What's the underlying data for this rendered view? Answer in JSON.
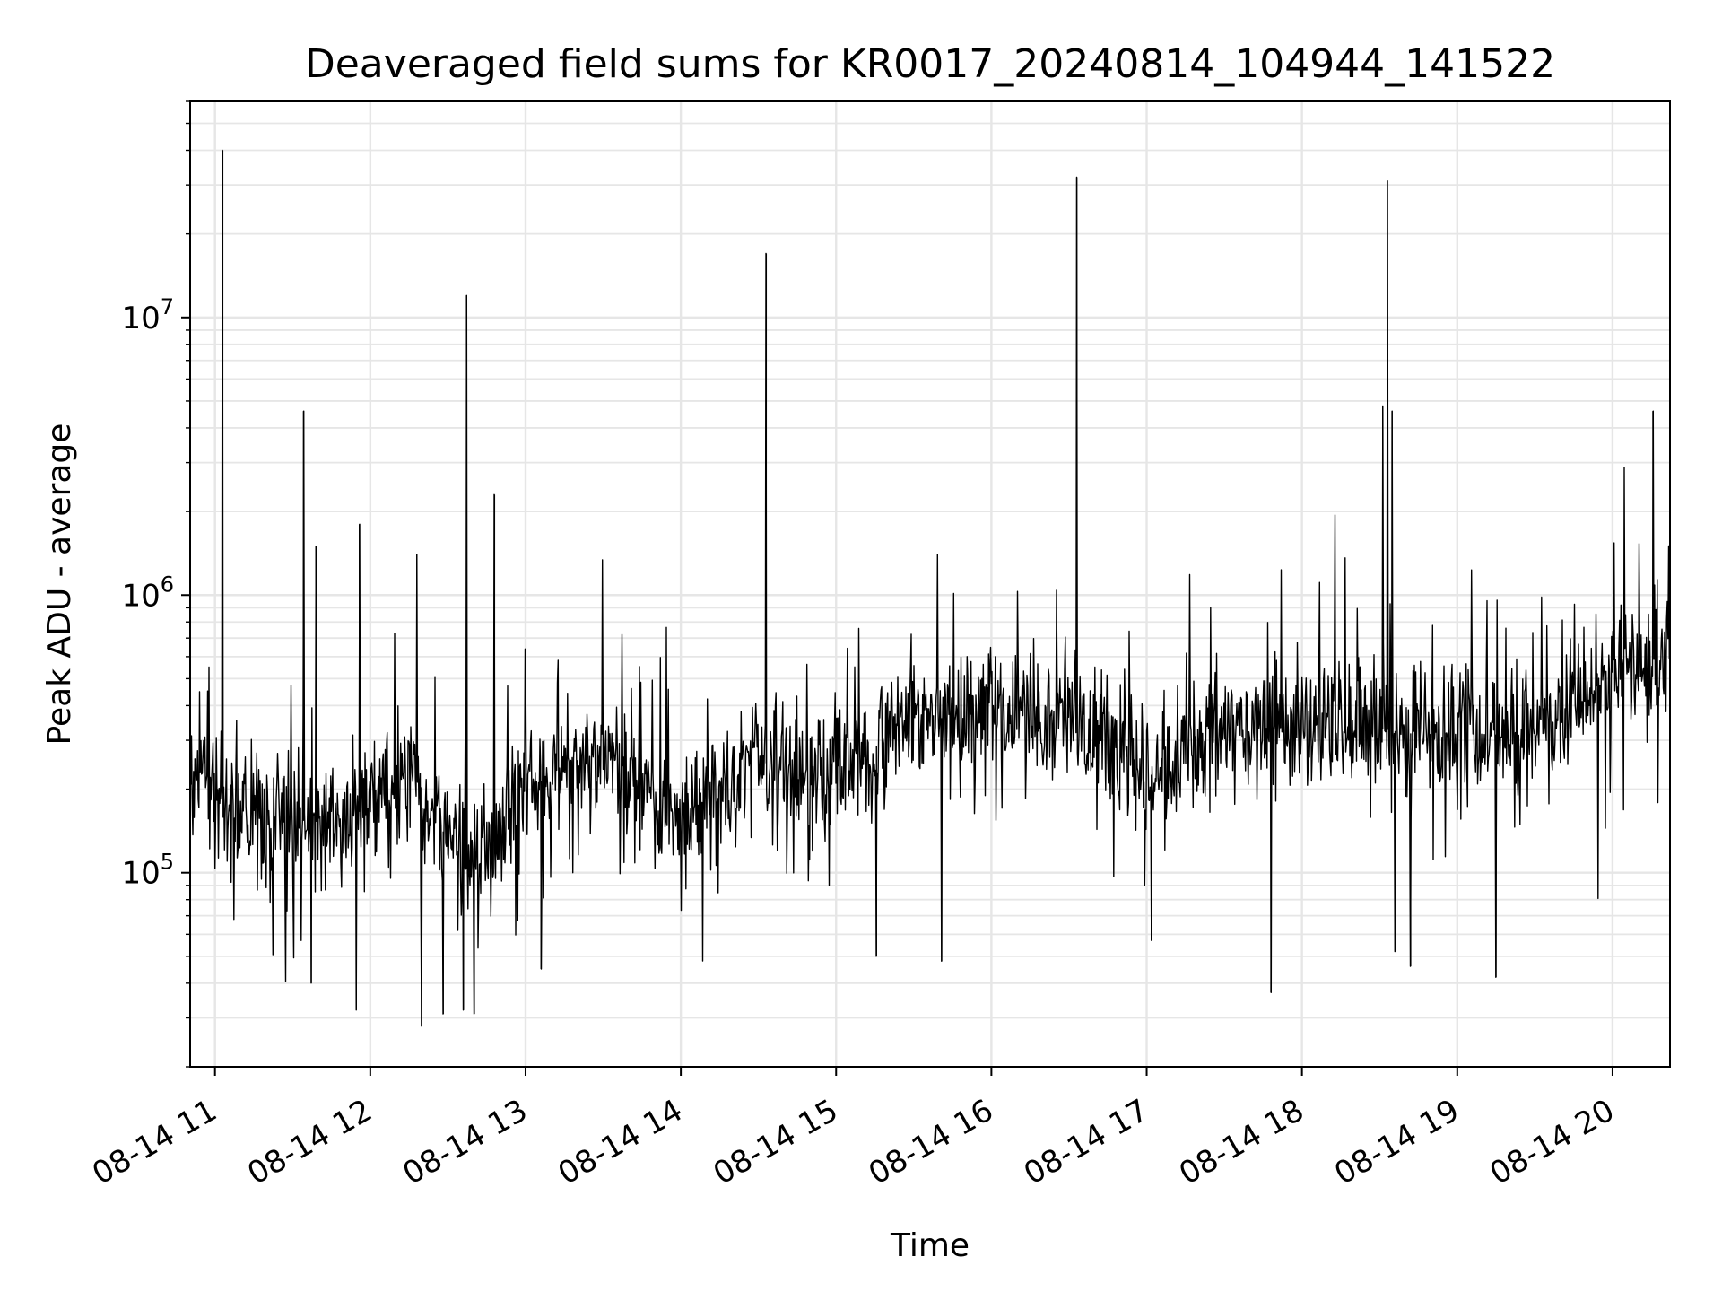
{
  "chart_data": {
    "type": "line",
    "title": "Deaveraged field sums for KR0017_20240814_104944_141522",
    "xlabel": "Time",
    "ylabel": "Peak ADU - average",
    "yscale": "log",
    "ylim": [
      20000,
      60000000
    ],
    "xlim_hours": [
      10.84,
      20.37
    ],
    "grid": true,
    "line_color": "#000000",
    "x_ticks": [
      {
        "value": 11,
        "label": "08-14 11"
      },
      {
        "value": 12,
        "label": "08-14 12"
      },
      {
        "value": 13,
        "label": "08-14 13"
      },
      {
        "value": 14,
        "label": "08-14 14"
      },
      {
        "value": 15,
        "label": "08-14 15"
      },
      {
        "value": 16,
        "label": "08-14 16"
      },
      {
        "value": 17,
        "label": "08-14 17"
      },
      {
        "value": 18,
        "label": "08-14 18"
      },
      {
        "value": 19,
        "label": "08-14 19"
      },
      {
        "value": 20,
        "label": "08-14 20"
      }
    ],
    "y_ticks": [
      {
        "value": 100000,
        "base": "10",
        "exp": "5"
      },
      {
        "value": 1000000,
        "base": "10",
        "exp": "6"
      },
      {
        "value": 10000000,
        "base": "10",
        "exp": "7"
      }
    ],
    "baseline_trend": [
      {
        "t": 10.84,
        "v": 250000
      },
      {
        "t": 11.2,
        "v": 160000
      },
      {
        "t": 11.8,
        "v": 150000
      },
      {
        "t": 12.3,
        "v": 220000
      },
      {
        "t": 12.6,
        "v": 100000
      },
      {
        "t": 13.0,
        "v": 200000
      },
      {
        "t": 13.5,
        "v": 280000
      },
      {
        "t": 14.0,
        "v": 150000
      },
      {
        "t": 14.5,
        "v": 250000
      },
      {
        "t": 15.0,
        "v": 230000
      },
      {
        "t": 15.5,
        "v": 350000
      },
      {
        "t": 16.0,
        "v": 380000
      },
      {
        "t": 16.5,
        "v": 380000
      },
      {
        "t": 17.0,
        "v": 220000
      },
      {
        "t": 17.5,
        "v": 330000
      },
      {
        "t": 18.0,
        "v": 330000
      },
      {
        "t": 18.5,
        "v": 330000
      },
      {
        "t": 19.0,
        "v": 300000
      },
      {
        "t": 19.5,
        "v": 330000
      },
      {
        "t": 19.9,
        "v": 450000
      },
      {
        "t": 20.37,
        "v": 680000
      }
    ],
    "spikes": [
      {
        "t": 11.05,
        "v": 40000000
      },
      {
        "t": 11.57,
        "v": 4600000
      },
      {
        "t": 11.65,
        "v": 1500000
      },
      {
        "t": 11.93,
        "v": 1800000
      },
      {
        "t": 12.3,
        "v": 1400000
      },
      {
        "t": 12.62,
        "v": 12000000
      },
      {
        "t": 12.8,
        "v": 2300000
      },
      {
        "t": 14.55,
        "v": 17000000
      },
      {
        "t": 16.55,
        "v": 32000000
      },
      {
        "t": 18.52,
        "v": 4800000
      },
      {
        "t": 18.55,
        "v": 31000000
      },
      {
        "t": 18.58,
        "v": 4600000
      },
      {
        "t": 20.26,
        "v": 4600000
      }
    ],
    "dips": [
      {
        "t": 11.62,
        "v": 40000
      },
      {
        "t": 11.91,
        "v": 32000
      },
      {
        "t": 12.33,
        "v": 28000
      },
      {
        "t": 12.47,
        "v": 31000
      },
      {
        "t": 12.6,
        "v": 32000
      },
      {
        "t": 12.67,
        "v": 31000
      },
      {
        "t": 13.1,
        "v": 45000
      },
      {
        "t": 15.26,
        "v": 50000
      },
      {
        "t": 15.68,
        "v": 48000
      },
      {
        "t": 17.03,
        "v": 57000
      },
      {
        "t": 17.8,
        "v": 37000
      },
      {
        "t": 18.6,
        "v": 52000
      },
      {
        "t": 18.7,
        "v": 46000
      },
      {
        "t": 19.25,
        "v": 42000
      }
    ]
  }
}
